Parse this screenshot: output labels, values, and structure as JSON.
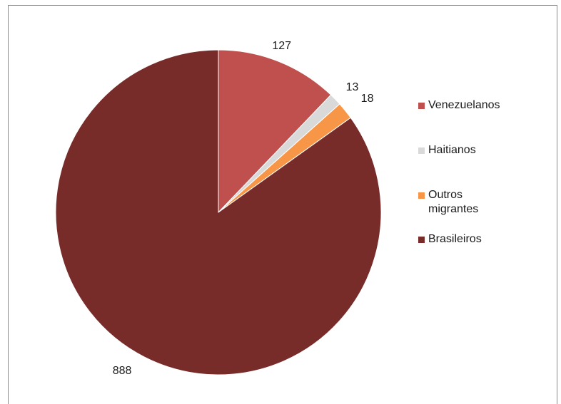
{
  "chart_data": {
    "type": "pie",
    "title": "",
    "slices": [
      {
        "label": "Venezuelanos",
        "value": 127,
        "color": "#c0504d"
      },
      {
        "label": "Haitianos",
        "value": 13,
        "color": "#d9d9d9"
      },
      {
        "label": "Outros\nmigrantes",
        "value": 18,
        "color": "#f79646"
      },
      {
        "label": "Brasileiros",
        "value": 888,
        "color": "#772c2a"
      }
    ],
    "start_angle": "12 o'clock",
    "direction": "clockwise",
    "data_labels": [
      "127",
      "13",
      "18",
      "888"
    ],
    "legend_position": "right"
  }
}
